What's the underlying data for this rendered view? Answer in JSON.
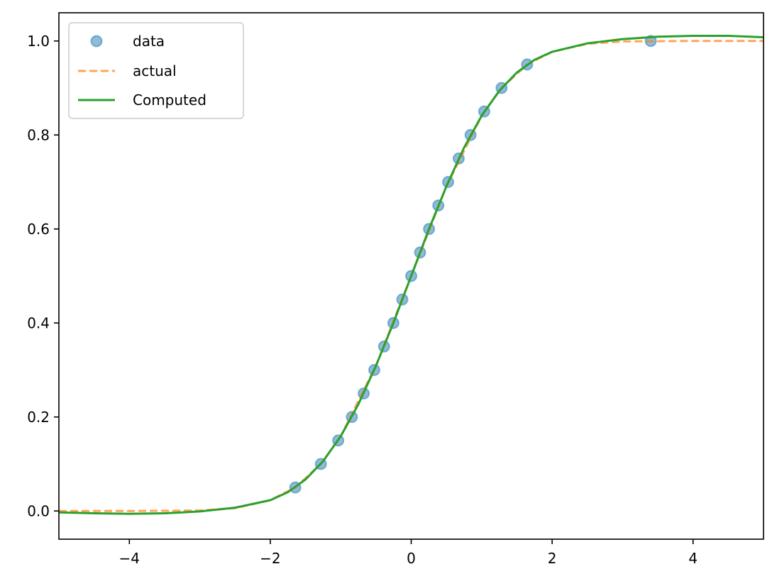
{
  "chart_data": {
    "type": "line",
    "title": "",
    "xlabel": "",
    "ylabel": "",
    "xlim": [
      -5,
      5
    ],
    "ylim": [
      -0.06,
      1.06
    ],
    "xticks": [
      -4,
      -2,
      0,
      2,
      4
    ],
    "xtick_labels": [
      "−4",
      "−2",
      "0",
      "2",
      "4"
    ],
    "yticks": [
      0.0,
      0.2,
      0.4,
      0.6,
      0.8,
      1.0
    ],
    "ytick_labels": [
      "0.0",
      "0.2",
      "0.4",
      "0.6",
      "0.8",
      "1.0"
    ],
    "grid": false,
    "legend_position": "top-left",
    "series": [
      {
        "name": "data",
        "kind": "scatter",
        "color": "#1f77b4",
        "x": [
          -1.645,
          -1.282,
          -1.036,
          -0.842,
          -0.674,
          -0.524,
          -0.385,
          -0.253,
          -0.126,
          0.0,
          0.126,
          0.253,
          0.385,
          0.524,
          0.674,
          0.842,
          1.036,
          1.282,
          1.645,
          3.4
        ],
        "y": [
          0.05,
          0.1,
          0.15,
          0.2,
          0.25,
          0.3,
          0.35,
          0.4,
          0.45,
          0.5,
          0.55,
          0.6,
          0.65,
          0.7,
          0.75,
          0.8,
          0.85,
          0.9,
          0.95,
          1.0
        ]
      },
      {
        "name": "actual",
        "kind": "dashed-line",
        "color": "#ff7f0e",
        "x": [
          -5.0,
          -4.0,
          -3.0,
          -2.5,
          -2.0,
          -1.645,
          -1.282,
          -1.0,
          -0.5,
          0.0,
          0.5,
          1.0,
          1.282,
          1.645,
          2.0,
          2.5,
          3.0,
          4.0,
          5.0
        ],
        "y": [
          0.0,
          0.0,
          0.001,
          0.006,
          0.023,
          0.05,
          0.1,
          0.159,
          0.309,
          0.5,
          0.691,
          0.841,
          0.9,
          0.95,
          0.977,
          0.994,
          0.999,
          1.0,
          1.0
        ]
      },
      {
        "name": "Computed",
        "kind": "line",
        "color": "#2ca02c",
        "x": [
          -5.0,
          -4.5,
          -4.0,
          -3.5,
          -3.0,
          -2.5,
          -2.0,
          -1.75,
          -1.5,
          -1.25,
          -1.0,
          -0.75,
          -0.5,
          -0.25,
          0.0,
          0.25,
          0.5,
          0.75,
          1.0,
          1.25,
          1.5,
          1.75,
          2.0,
          2.5,
          3.0,
          3.5,
          4.0,
          4.5,
          5.0
        ],
        "y": [
          -0.003,
          -0.005,
          -0.006,
          -0.005,
          -0.001,
          0.007,
          0.023,
          0.04,
          0.067,
          0.106,
          0.159,
          0.227,
          0.309,
          0.401,
          0.5,
          0.599,
          0.691,
          0.773,
          0.841,
          0.894,
          0.933,
          0.96,
          0.977,
          0.995,
          1.004,
          1.009,
          1.011,
          1.011,
          1.008
        ]
      }
    ]
  }
}
